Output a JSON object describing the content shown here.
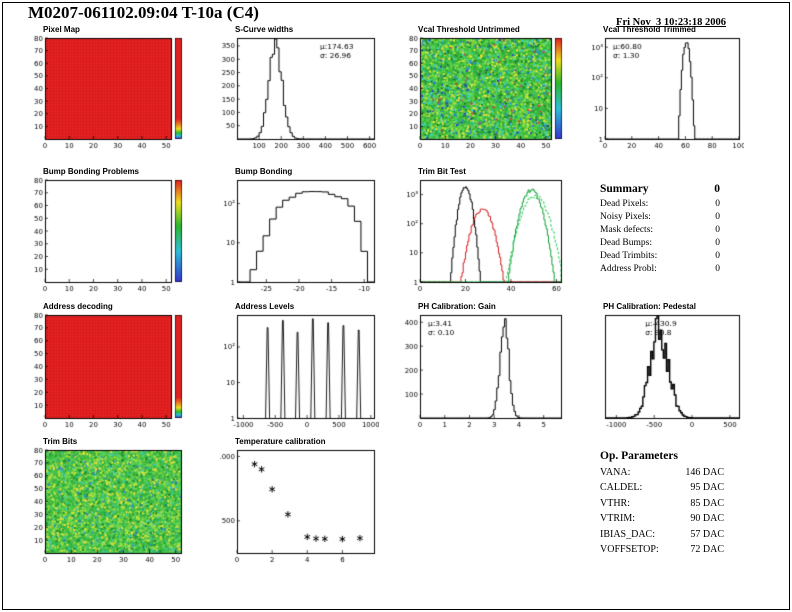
{
  "page": {
    "title": "M0207-061102.09:04 T-10a (C4)",
    "datetime": "Fri Nov  3 10:23:18 2006"
  },
  "summary": {
    "title": "Summary",
    "title_value": "0",
    "rows": [
      {
        "label": "Dead Pixels:",
        "value": "0"
      },
      {
        "label": "Noisy Pixels:",
        "value": "0"
      },
      {
        "label": "Mask defects:",
        "value": "0"
      },
      {
        "label": "Dead Bumps:",
        "value": "0"
      },
      {
        "label": "Dead Trimbits:",
        "value": "0"
      },
      {
        "label": "Address Probl:",
        "value": "0"
      }
    ]
  },
  "op_parameters": {
    "title": "Op. Parameters",
    "rows": [
      {
        "label": "VANA:",
        "value": "146 DAC"
      },
      {
        "label": "CALDEL:",
        "value": "95 DAC"
      },
      {
        "label": "VTHR:",
        "value": "85 DAC"
      },
      {
        "label": "VTRIM:",
        "value": "90 DAC"
      },
      {
        "label": "IBIAS_DAC:",
        "value": "57 DAC"
      },
      {
        "label": "VOFFSETOP:",
        "value": "72 DAC"
      }
    ]
  },
  "chart_data": [
    {
      "id": "pixel-map",
      "type": "heatmap",
      "title": "Pixel Map",
      "xlim": [
        0,
        52
      ],
      "x_ticks": [
        0,
        10,
        20,
        30,
        40,
        50
      ],
      "ylim": [
        0,
        80
      ],
      "y_ticks": [
        10,
        20,
        30,
        40,
        50,
        60,
        70,
        80
      ],
      "base": "#e32020",
      "texture": "dots",
      "dot": "#bc1616",
      "colorbar": "red-rainbow"
    },
    {
      "id": "s-curve-widths",
      "type": "hist-gauss",
      "title": "S-Curve widths",
      "xlim": [
        0,
        620
      ],
      "x_ticks": [
        100,
        200,
        300,
        400,
        500,
        600
      ],
      "ylim": [
        0,
        380
      ],
      "y_ticks": [
        50,
        100,
        150,
        200,
        250,
        300,
        350
      ],
      "mu": 174.63,
      "sigma": 26.96,
      "sigma_draw": 30,
      "peak": 355,
      "bins": 62,
      "jitter": 0.25,
      "stats": [
        "μ:174.63",
        "σ: 26.96"
      ],
      "stats_pos": "tr"
    },
    {
      "id": "vcal-threshold-untrimmed",
      "type": "heatmap",
      "title": "Vcal Threshold Untrimmed",
      "xlim": [
        0,
        52
      ],
      "x_ticks": [
        0,
        10,
        20,
        30,
        40,
        50
      ],
      "ylim": [
        0,
        80
      ],
      "y_ticks": [
        10,
        20,
        30,
        40,
        50,
        60,
        70,
        80
      ],
      "base": "#3fbe46",
      "texture": "speckle",
      "palette": [
        [
          "#2fae36",
          3
        ],
        [
          "#57d44e",
          2.5
        ],
        [
          "#8fdc46",
          1.5
        ],
        [
          "#c8e43c",
          1
        ],
        [
          "#f0e43c",
          0.7
        ],
        [
          "#3fd4c4",
          1
        ],
        [
          "#2f86dc",
          0.6
        ],
        [
          "#1d7f2d",
          1
        ],
        [
          "#d84040",
          0.15
        ],
        [
          "#3040c0",
          0.3
        ]
      ],
      "colorbar": "rainbow"
    },
    {
      "id": "vcal-threshold-trimmed",
      "type": "hist-gauss",
      "title": "Vcal Threshold Trimmed",
      "xlim": [
        0,
        100
      ],
      "x_ticks": [
        0,
        20,
        40,
        60,
        80,
        100
      ],
      "ylog": [
        0,
        3.3
      ],
      "y_label_exps": [
        0,
        1,
        2,
        3
      ],
      "mu": 60.8,
      "sigma": 1.3,
      "sigma_draw": 1.6,
      "peak": 1500,
      "bins": 100,
      "jitter": 0.2,
      "stats": [
        "μ:60.80",
        "σ: 1.30"
      ],
      "stats_pos": "tl"
    },
    {
      "id": "bump-bonding-problems",
      "type": "heatmap",
      "title": "Bump Bonding Problems",
      "xlim": [
        0,
        52
      ],
      "x_ticks": [
        0,
        10,
        20,
        30,
        40,
        50
      ],
      "ylim": [
        0,
        80
      ],
      "y_ticks": [
        10,
        20,
        30,
        40,
        50,
        60,
        70,
        80
      ],
      "base": "#ffffff",
      "colorbar": "rainbow"
    },
    {
      "id": "bump-bonding",
      "type": "hist-bins",
      "title": "Bump Bonding",
      "xlim": [
        -29.5,
        -8.5
      ],
      "x_ticks": [
        -25,
        -20,
        -15,
        -10
      ],
      "ylog": [
        0,
        2.6
      ],
      "y_label_exps": [
        0,
        1,
        2
      ],
      "values": [
        0,
        1,
        2,
        6,
        15,
        40,
        78,
        118,
        152,
        186,
        206,
        216,
        210,
        196,
        180,
        154,
        124,
        84,
        34,
        6,
        1
      ],
      "jitter": 0.15
    },
    {
      "id": "trim-bit-test",
      "type": "multi-gauss",
      "title": "Trim Bit Test",
      "xlim": [
        0,
        62
      ],
      "x_ticks": [
        0,
        20,
        40,
        60
      ],
      "ylog": [
        0,
        3.5
      ],
      "y_label_exps": [
        0,
        1,
        2,
        3
      ],
      "series": [
        {
          "color": "#000000",
          "mu": 20,
          "sigma": 1.7,
          "peak": 1800,
          "bins": 124,
          "jitter": 0.3
        },
        {
          "color": "#d42020",
          "mu": 27.5,
          "sigma": 2.8,
          "peak": 320,
          "bins": 124,
          "jitter": 0.3
        },
        {
          "color": "#17a03a",
          "mu": 49,
          "sigma": 2.7,
          "peak": 1400,
          "bins": 124,
          "jitter": 0.3
        },
        {
          "color": "#2fcf5f",
          "mu": 50.5,
          "sigma": 3.4,
          "peak": 900,
          "bins": 124,
          "jitter": 0.3,
          "dash": [
            3,
            2
          ]
        }
      ]
    },
    {
      "id": "address-decoding",
      "type": "heatmap",
      "title": "Address decoding",
      "xlim": [
        0,
        52
      ],
      "x_ticks": [
        0,
        10,
        20,
        30,
        40,
        50
      ],
      "ylim": [
        0,
        80
      ],
      "y_ticks": [
        10,
        20,
        30,
        40,
        50,
        60,
        70,
        80
      ],
      "base": "#e32020",
      "texture": "dots",
      "dot": "#bc1616",
      "colorbar": "red-rainbow"
    },
    {
      "id": "address-levels",
      "type": "spikes",
      "title": "Address Levels",
      "xlim": [
        -1100,
        1050
      ],
      "x_ticks": [
        -1000,
        -500,
        0,
        500,
        1000
      ],
      "ylog": [
        0,
        2.9
      ],
      "y_label_exps": [
        0,
        1,
        2
      ],
      "points": [
        [
          -620,
          350
        ],
        [
          -380,
          560
        ],
        [
          -150,
          260
        ],
        [
          90,
          620
        ],
        [
          330,
          480
        ],
        [
          570,
          400
        ],
        [
          810,
          300
        ]
      ]
    },
    {
      "id": "ph-calibration-gain",
      "type": "hist-gauss",
      "title": "PH Calibration: Gain",
      "xlim": [
        0,
        5.7
      ],
      "x_ticks": [
        0,
        1,
        2,
        3,
        4,
        5
      ],
      "ylim": [
        0,
        430
      ],
      "y_ticks": [
        100,
        200,
        300,
        400
      ],
      "mu": 3.41,
      "sigma": 0.1,
      "sigma_draw": 0.18,
      "peak": 400,
      "bins": 90,
      "jitter": 0.25,
      "stats": [
        "μ:3.41",
        "σ: 0.10"
      ],
      "stats_pos": "tl"
    },
    {
      "id": "ph-calibration-pedestal",
      "type": "hist-gauss",
      "title": "PH Calibration: Pedestal",
      "xlim": [
        -1150,
        620
      ],
      "x_ticks": [
        -1000,
        -500,
        0,
        500
      ],
      "ylim": [
        0,
        1.15
      ],
      "y_ticks": [],
      "mu": -430.9,
      "sigma": 90.8,
      "sigma_draw": 120,
      "peak": 1,
      "bins": 85,
      "jitter": 0.55,
      "lw": 1.4,
      "stats": [
        "μ:-430.9",
        "σ: 90.8"
      ],
      "stats_pos": "tc"
    },
    {
      "id": "trim-bits",
      "type": "heatmap",
      "title": "Trim Bits",
      "xlim": [
        0,
        52
      ],
      "x_ticks": [
        0,
        10,
        20,
        30,
        40,
        50
      ],
      "ylim": [
        0,
        80
      ],
      "y_ticks": [
        10,
        20,
        30,
        40,
        50,
        60,
        70,
        80
      ],
      "base": "#46c24e",
      "texture": "speckle",
      "palette": [
        [
          "#36b23e",
          3
        ],
        [
          "#5fd452",
          2.5
        ],
        [
          "#98dc46",
          1.5
        ],
        [
          "#d0e43c",
          1
        ],
        [
          "#f0dc3c",
          0.6
        ],
        [
          "#3fc8b4",
          0.7
        ],
        [
          "#2f7fd0",
          0.3
        ],
        [
          "#1d8f2d",
          1
        ]
      ]
    },
    {
      "id": "temperature-calibration",
      "type": "scatter",
      "title": "Temperature calibration",
      "xlim": [
        0,
        7.8
      ],
      "x_ticks": [
        0,
        2,
        4,
        6
      ],
      "ylim": [
        250,
        1050
      ],
      "y_ticks": [
        500,
        1000
      ],
      "points": [
        [
          1,
          940
        ],
        [
          1.4,
          900
        ],
        [
          2,
          745
        ],
        [
          2.9,
          550
        ],
        [
          4,
          375
        ],
        [
          4.5,
          362
        ],
        [
          5,
          360
        ],
        [
          6,
          358
        ],
        [
          7,
          365
        ]
      ]
    }
  ]
}
